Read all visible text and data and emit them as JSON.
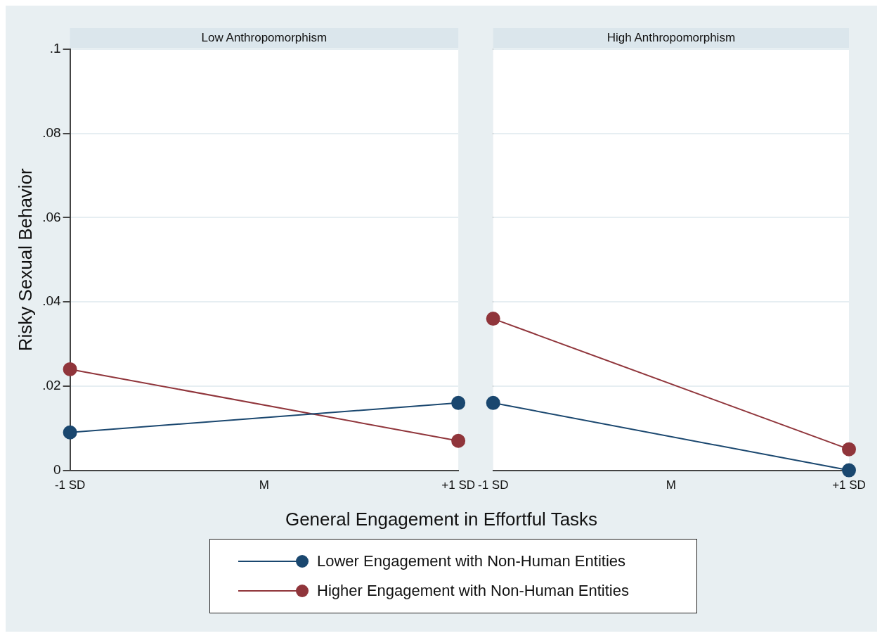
{
  "chart_data": [
    {
      "type": "line",
      "title": "Low Anthropomorphism",
      "xlabel": "General Engagement in Effortful Tasks",
      "ylabel": "Risky Sexual Behavior",
      "categories": [
        "-1 SD",
        "M",
        "+1 SD"
      ],
      "ylim": [
        0,
        0.1
      ],
      "yticks": [
        0,
        {
          "value": 0.02,
          "label": ".02"
        },
        {
          "value": 0.04,
          "label": ".04"
        },
        {
          "value": 0.06,
          "label": ".06"
        },
        {
          "value": 0.08,
          "label": ".08"
        },
        {
          "value": 0.1,
          "label": ".1"
        }
      ],
      "grid": "y",
      "marker": "circle",
      "legend": "bottom",
      "series": [
        {
          "name": "Lower Engagement with Non-Human Entities",
          "color": "#1a476f",
          "values": [
            0.009,
            null,
            0.016
          ]
        },
        {
          "name": "Higher Engagement with Non-Human Entities",
          "color": "#90353b",
          "values": [
            0.024,
            null,
            0.007
          ]
        }
      ]
    },
    {
      "type": "line",
      "title": "High Anthropomorphism",
      "categories": [
        "-1 SD",
        "M",
        "+1 SD"
      ],
      "ylim": [
        0,
        0.1
      ],
      "yticks": [
        {
          "value": 0,
          "label": null
        },
        {
          "value": 0.02,
          "label": null
        },
        {
          "value": 0.04,
          "label": null
        },
        {
          "value": 0.06,
          "label": null
        },
        {
          "value": 0.08,
          "label": null
        },
        {
          "value": 0.1,
          "label": null
        }
      ],
      "grid": "y",
      "marker": "circle",
      "tick_labels": "x",
      "series": [
        {
          "color": "#1a476f",
          "values": [
            0.016,
            null,
            0.0
          ]
        },
        {
          "color": "#90353b",
          "values": [
            0.036,
            null,
            0.005
          ]
        }
      ]
    }
  ]
}
